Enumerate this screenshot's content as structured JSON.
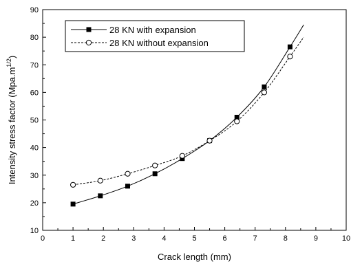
{
  "chart_data": {
    "type": "line",
    "xlabel": "Crack length (mm)",
    "ylabel_main": "Intensity stress factor (Mpa.m",
    "ylabel_exp": "1/2",
    "ylabel_close": ")",
    "xlim": [
      0,
      10
    ],
    "ylim": [
      10,
      90
    ],
    "xticks": [
      0,
      1,
      2,
      3,
      4,
      5,
      6,
      7,
      8,
      9,
      10
    ],
    "yticks": [
      10,
      20,
      30,
      40,
      50,
      60,
      70,
      80,
      90
    ],
    "grid": false,
    "legend_position": "top-left",
    "series": [
      {
        "name": "28 KN with expansion",
        "style": "solid",
        "marker": "filled-square",
        "x": [
          1.0,
          1.9,
          2.8,
          3.7,
          4.6,
          5.5,
          6.4,
          7.3,
          8.15
        ],
        "y": [
          19.5,
          22.5,
          26.0,
          30.5,
          36.0,
          42.5,
          51.0,
          62.0,
          76.5
        ],
        "curve_x": [
          1.0,
          1.9,
          2.8,
          3.7,
          4.6,
          5.5,
          6.4,
          7.3,
          8.15,
          8.6
        ],
        "curve_y": [
          19.5,
          22.5,
          26.0,
          30.5,
          36.0,
          42.5,
          51.0,
          62.0,
          76.5,
          84.5
        ]
      },
      {
        "name": "28 KN without expansion",
        "style": "dashed",
        "marker": "open-circle",
        "x": [
          1.0,
          1.9,
          2.8,
          3.7,
          4.6,
          5.5,
          6.4,
          7.3,
          8.15
        ],
        "y": [
          26.5,
          28.0,
          30.5,
          33.5,
          37.0,
          42.5,
          49.5,
          60.0,
          73.0
        ],
        "curve_x": [
          1.0,
          1.9,
          2.8,
          3.7,
          4.6,
          5.5,
          6.4,
          7.3,
          8.15,
          8.6
        ],
        "curve_y": [
          26.5,
          28.0,
          30.5,
          33.5,
          37.0,
          42.5,
          49.5,
          60.0,
          73.0,
          80.0
        ]
      }
    ]
  }
}
